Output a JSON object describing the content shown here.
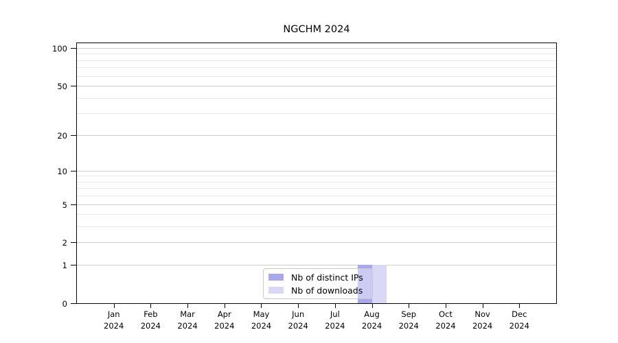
{
  "chart_data": {
    "type": "bar",
    "title": "NGCHM 2024",
    "xlabel": "",
    "ylabel": "",
    "categories": [
      "Jan 2024",
      "Feb 2024",
      "Mar 2024",
      "Apr 2024",
      "May 2024",
      "Jun 2024",
      "Jul 2024",
      "Aug 2024",
      "Sep 2024",
      "Oct 2024",
      "Nov 2024",
      "Dec 2024"
    ],
    "series": [
      {
        "name": "Nb of distinct IPs",
        "color": "#a8a8ed",
        "values": [
          0,
          0,
          0,
          0,
          0,
          0,
          0,
          1,
          0,
          0,
          0,
          0
        ]
      },
      {
        "name": "Nb of downloads",
        "color": "#d9d9f7",
        "values": [
          0,
          0,
          0,
          0,
          0,
          0,
          0,
          1,
          0,
          0,
          0,
          0
        ]
      }
    ],
    "y_axis": {
      "scale": "log1p",
      "major_ticks": [
        0,
        1,
        2,
        5,
        10,
        20,
        50,
        100
      ],
      "minor_gridlines": [
        3,
        4,
        6,
        7,
        8,
        9,
        30,
        40,
        60,
        70,
        80,
        90
      ],
      "range": [
        0,
        110
      ]
    },
    "legend": {
      "position": "lower center",
      "entries": [
        "Nb of distinct IPs",
        "Nb of downloads"
      ]
    },
    "grid": {
      "major_color": "#cccccc",
      "minor_color": "#eaeaea"
    }
  }
}
